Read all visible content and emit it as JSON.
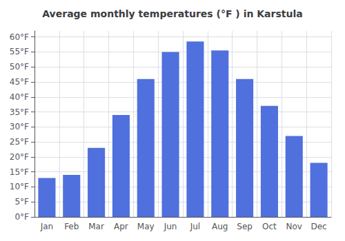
{
  "chart_data": {
    "type": "bar",
    "title": "Average monthly temperatures (°F ) in Karstula",
    "categories": [
      "Jan",
      "Feb",
      "Mar",
      "Apr",
      "May",
      "Jun",
      "Jul",
      "Aug",
      "Sep",
      "Oct",
      "Nov",
      "Dec"
    ],
    "values": [
      13,
      14,
      23,
      34,
      46,
      55,
      58.5,
      55.5,
      46,
      37,
      27,
      18
    ],
    "ylim": [
      0,
      62
    ],
    "yticks": [
      {
        "value": 0,
        "label": "0°F"
      },
      {
        "value": 5,
        "label": "5°F"
      },
      {
        "value": 10,
        "label": "10°F"
      },
      {
        "value": 15,
        "label": "15°F"
      },
      {
        "value": 20,
        "label": "20°F"
      },
      {
        "value": 25,
        "label": "25°F"
      },
      {
        "value": 30,
        "label": "30°F"
      },
      {
        "value": 35,
        "label": "35°F"
      },
      {
        "value": 40,
        "label": "40°F"
      },
      {
        "value": 45,
        "label": "45°F"
      },
      {
        "value": 50,
        "label": "50°F"
      },
      {
        "value": 55,
        "label": "55°F"
      },
      {
        "value": 60,
        "label": "60°F"
      }
    ],
    "grid": true
  }
}
